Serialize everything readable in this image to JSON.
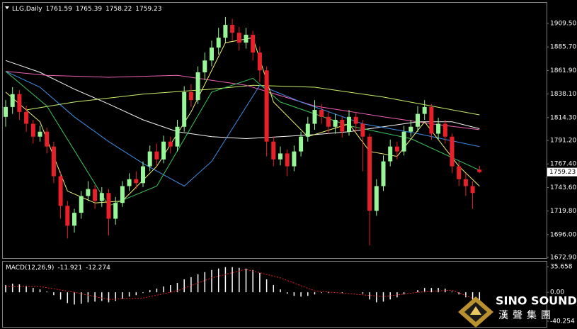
{
  "chart_data": [
    {
      "type": "candlestick",
      "title": "LLG,Daily",
      "open": [
        1815,
        1825,
        1838,
        1820,
        1808,
        1795,
        1800,
        1785,
        1755,
        1725,
        1705,
        1718,
        1735,
        1742,
        1730,
        1738,
        1712,
        1728,
        1745,
        1752,
        1748,
        1765,
        1780,
        1772,
        1790,
        1785,
        1805,
        1840,
        1832,
        1860,
        1872,
        1885,
        1895,
        1908,
        1900,
        1890,
        1898,
        1880,
        1862,
        1790,
        1772,
        1778,
        1765,
        1780,
        1795,
        1808,
        1822,
        1815,
        1805,
        1812,
        1800,
        1815,
        1808,
        1795,
        1720,
        1745,
        1770,
        1785,
        1780,
        1800,
        1805,
        1818,
        1825,
        1798,
        1808,
        1795,
        1765,
        1752,
        1745,
        1761.59
      ],
      "high": [
        1832,
        1845,
        1842,
        1826,
        1812,
        1806,
        1804,
        1790,
        1760,
        1730,
        1722,
        1740,
        1750,
        1746,
        1744,
        1742,
        1734,
        1750,
        1758,
        1760,
        1770,
        1786,
        1788,
        1796,
        1795,
        1812,
        1846,
        1848,
        1866,
        1880,
        1892,
        1905,
        1916,
        1914,
        1906,
        1905,
        1902,
        1886,
        1866,
        1795,
        1785,
        1782,
        1786,
        1800,
        1815,
        1832,
        1828,
        1820,
        1818,
        1815,
        1822,
        1820,
        1812,
        1798,
        1752,
        1776,
        1792,
        1790,
        1806,
        1812,
        1826,
        1832,
        1828,
        1814,
        1812,
        1798,
        1770,
        1758,
        1750,
        1765.39
      ],
      "low": [
        1805,
        1818,
        1812,
        1800,
        1788,
        1790,
        1778,
        1748,
        1712,
        1692,
        1698,
        1712,
        1730,
        1722,
        1724,
        1695,
        1706,
        1724,
        1740,
        1742,
        1744,
        1760,
        1766,
        1768,
        1778,
        1780,
        1800,
        1825,
        1828,
        1852,
        1866,
        1878,
        1890,
        1892,
        1882,
        1884,
        1872,
        1850,
        1775,
        1765,
        1766,
        1755,
        1760,
        1775,
        1790,
        1802,
        1808,
        1798,
        1798,
        1794,
        1796,
        1800,
        1760,
        1685,
        1715,
        1740,
        1765,
        1772,
        1776,
        1795,
        1800,
        1812,
        1792,
        1792,
        1788,
        1758,
        1745,
        1735,
        1722,
        1758.22
      ],
      "close": [
        1825,
        1838,
        1820,
        1808,
        1795,
        1800,
        1785,
        1755,
        1725,
        1705,
        1718,
        1735,
        1742,
        1730,
        1738,
        1712,
        1728,
        1745,
        1752,
        1748,
        1765,
        1780,
        1772,
        1790,
        1785,
        1805,
        1840,
        1832,
        1860,
        1872,
        1885,
        1895,
        1908,
        1900,
        1890,
        1898,
        1880,
        1862,
        1790,
        1772,
        1778,
        1765,
        1780,
        1795,
        1808,
        1822,
        1815,
        1805,
        1812,
        1800,
        1815,
        1808,
        1795,
        1720,
        1745,
        1770,
        1785,
        1780,
        1800,
        1805,
        1818,
        1825,
        1798,
        1808,
        1795,
        1765,
        1752,
        1745,
        1738,
        1759.23
      ],
      "up_color": "#98f598",
      "down_color": "#e8202a",
      "lines": [
        {
          "color": "#f4f4f4",
          "x": [
            0,
            5,
            10,
            15,
            20,
            25,
            30,
            35,
            40,
            45,
            50,
            55,
            60,
            65,
            69
          ],
          "values": [
            1872,
            1860,
            1843,
            1828,
            1812,
            1800,
            1795,
            1793,
            1795,
            1797,
            1800,
            1805,
            1810,
            1810,
            1803
          ]
        },
        {
          "color": "#c8f06a",
          "x": [
            3,
            10,
            20,
            30,
            36,
            45,
            55,
            62,
            69
          ],
          "values": [
            1822,
            1830,
            1838,
            1843,
            1847,
            1845,
            1835,
            1826,
            1817
          ]
        },
        {
          "color": "#ee5fb4",
          "x": [
            0,
            6,
            15,
            25,
            35,
            45,
            55,
            62,
            69
          ],
          "values": [
            1861,
            1857,
            1855,
            1857,
            1847,
            1826,
            1815,
            1808,
            1802
          ]
        },
        {
          "color": "#3f8fe8",
          "x": [
            0,
            5,
            10,
            15,
            20,
            26,
            30,
            37,
            43,
            52,
            60,
            69
          ],
          "values": [
            1861,
            1845,
            1815,
            1790,
            1768,
            1745,
            1770,
            1847,
            1830,
            1808,
            1798,
            1785
          ]
        },
        {
          "color": "#3cc45a",
          "x": [
            0,
            6,
            15,
            22,
            30,
            36,
            40,
            50,
            59,
            69
          ],
          "values": [
            1861,
            1826,
            1725,
            1745,
            1840,
            1854,
            1830,
            1806,
            1793,
            1761
          ]
        },
        {
          "color": "#f2f27a",
          "x": [
            0,
            5,
            9,
            13,
            17,
            22,
            27,
            32,
            36,
            39,
            44,
            50,
            53,
            57,
            61,
            66,
            69
          ],
          "values": [
            1840,
            1810,
            1740,
            1728,
            1730,
            1765,
            1820,
            1890,
            1895,
            1830,
            1795,
            1808,
            1780,
            1775,
            1810,
            1765,
            1745
          ]
        }
      ],
      "ylim": [
        1671.5,
        1927.4
      ],
      "yticks": [
        {
          "value": 1909.5,
          "label": "1909.50"
        },
        {
          "value": 1885.7,
          "label": "1885.70"
        },
        {
          "value": 1861.9,
          "label": "1861.90"
        },
        {
          "value": 1838.1,
          "label": "1838.10"
        },
        {
          "value": 1814.3,
          "label": "1814.30"
        },
        {
          "value": 1791.2,
          "label": "1791.20"
        },
        {
          "value": 1767.4,
          "label": "1767.40"
        },
        {
          "value": 1743.6,
          "label": "1743.60"
        },
        {
          "value": 1719.8,
          "label": "1719.80"
        },
        {
          "value": 1696,
          "label": "1696.00"
        },
        {
          "value": 1672.9,
          "label": "1672.90"
        }
      ]
    },
    {
      "type": "macd",
      "title": "MACD(12,26,9)",
      "main_value": -11.921,
      "signal_value": -12.274,
      "color": "#ffffff",
      "values": [
        10,
        12,
        11,
        9,
        6,
        4,
        1,
        -4,
        -10,
        -15,
        -17,
        -16,
        -14,
        -13,
        -12,
        -14,
        -12,
        -9,
        -6,
        -4,
        -1,
        3,
        5,
        8,
        10,
        13,
        18,
        21,
        25,
        28,
        31,
        33,
        35,
        35,
        34,
        33,
        31,
        27,
        18,
        10,
        4,
        -2,
        -5,
        -6,
        -5,
        -3,
        -1,
        -1,
        0,
        -1,
        0,
        0,
        -2,
        -10,
        -14,
        -13,
        -10,
        -7,
        -3,
        0,
        3,
        6,
        6,
        6,
        5,
        1,
        -3,
        -7,
        -10,
        -11.921
      ],
      "signal": {
        "color": "#e8202a",
        "x": [
          0,
          5,
          10,
          15,
          20,
          25,
          30,
          35,
          40,
          45,
          50,
          55,
          60,
          65,
          69
        ],
        "values": [
          8,
          8,
          0,
          -10,
          -8,
          2,
          20,
          32,
          20,
          2,
          -2,
          -6,
          0,
          3,
          -12.274
        ]
      },
      "ylim": [
        -49.1,
        42.6
      ],
      "yticks": [
        35.658,
        {
          "value": 0,
          "label": "0.00"
        },
        -40.254
      ]
    }
  ],
  "logo": {
    "name": "SINO SOUND",
    "chinese": "漢聲集團"
  }
}
